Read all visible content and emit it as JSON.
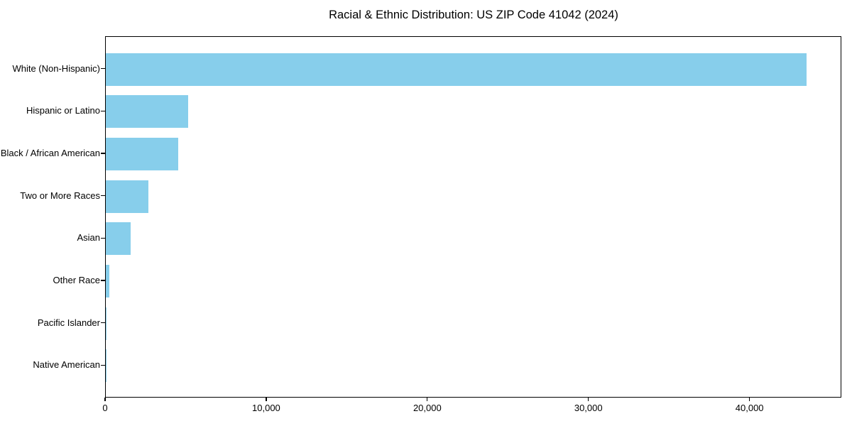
{
  "title": "Racial & Ethnic Distribution: US ZIP Code 41042 (2024)",
  "chart_data": {
    "type": "bar",
    "orientation": "horizontal",
    "title": "Racial & Ethnic Distribution: US ZIP Code 41042 (2024)",
    "categories": [
      "White (Non-Hispanic)",
      "Hispanic or Latino",
      "Black / African American",
      "Two or More Races",
      "Asian",
      "Other Race",
      "Pacific Islander",
      "Native American"
    ],
    "values": [
      43500,
      5100,
      4500,
      2650,
      1550,
      200,
      40,
      10
    ],
    "xlabel": "",
    "ylabel": "",
    "xlim": [
      0,
      45700
    ],
    "xticks": {
      "values": [
        0,
        10000,
        20000,
        30000,
        40000
      ],
      "labels": [
        "0",
        "10,000",
        "20,000",
        "30,000",
        "40,000"
      ]
    },
    "bar_color": "#87CEEB",
    "axis_color": "#000000",
    "text_color": "#000000",
    "background_color": "#ffffff",
    "grid": false,
    "legend": null
  }
}
